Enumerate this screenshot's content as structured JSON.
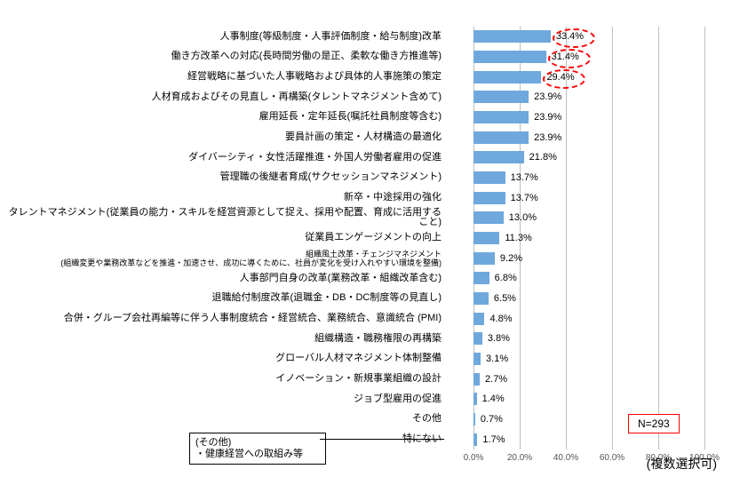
{
  "chart": {
    "type": "bar-horizontal",
    "x_max": 100,
    "x_ticks": [
      0,
      20,
      40,
      60,
      80,
      100
    ],
    "x_tick_labels": [
      "0.0%",
      "20.0%",
      "40.0%",
      "60.0%",
      "80.0%",
      "100.0%"
    ],
    "bar_color": "#6fa8dc",
    "grid_color": "#bfbfbf",
    "highlight_color": "#ff0000",
    "font_size_label": 11,
    "font_size_value": 11,
    "font_size_axis": 10,
    "n_box": "N=293",
    "multi_select_note": "(複数選択可)",
    "callout": {
      "line1": "(その他)",
      "line2": "・健康経営への取組み等"
    },
    "items": [
      {
        "label": "人事制度(等級制度・人事評価制度・給与制度)改革",
        "value": 33.4,
        "highlight": true
      },
      {
        "label": "働き方改革への対応(長時間労働の是正、柔軟な働き方推進等)",
        "value": 31.4,
        "highlight": true
      },
      {
        "label": "経営戦略に基づいた人事戦略および具体的人事施策の策定",
        "value": 29.4,
        "highlight": true
      },
      {
        "label": "人材育成およびその見直し・再構築(タレントマネジメント含めて)",
        "value": 23.9,
        "highlight": false
      },
      {
        "label": "雇用延長・定年延長(嘱託社員制度等含む)",
        "value": 23.9,
        "highlight": false
      },
      {
        "label": "要員計画の策定・人材構造の最適化",
        "value": 23.9,
        "highlight": false
      },
      {
        "label": "ダイバーシティ・女性活躍推進・外国人労働者雇用の促進",
        "value": 21.8,
        "highlight": false
      },
      {
        "label": "管理職の後継者育成(サクセッションマネジメント)",
        "value": 13.7,
        "highlight": false
      },
      {
        "label": "新卒・中途採用の強化",
        "value": 13.7,
        "highlight": false
      },
      {
        "label": "タレントマネジメント(従業員の能力・スキルを経営資源として捉え、採用や配置、育成に活用すること)",
        "value": 13.0,
        "highlight": false
      },
      {
        "label": "従業員エンゲージメントの向上",
        "value": 11.3,
        "highlight": false
      },
      {
        "label_line1": "組織風土改革・チェンジマネジメント",
        "label_line2": "(組織変更や業務改革などを推進・加速させ、成功に導くために、社員が変化を受け入れやすい環境を整備)",
        "two_line": true,
        "value": 9.2,
        "highlight": false
      },
      {
        "label": "人事部門自身の改革(業務改革・組織改革含む)",
        "value": 6.8,
        "highlight": false
      },
      {
        "label": "退職給付制度改革(退職金・DB・DC制度等の見直し)",
        "value": 6.5,
        "highlight": false
      },
      {
        "label": "合併・グループ会社再編等に伴う人事制度統合・経営統合、業務統合、意識統合 (PMI)",
        "value": 4.8,
        "highlight": false
      },
      {
        "label": "組織構造・職務権限の再構築",
        "value": 3.8,
        "highlight": false
      },
      {
        "label": "グローバル人材マネジメント体制整備",
        "value": 3.1,
        "highlight": false
      },
      {
        "label": "イノベーション・新規事業組織の設計",
        "value": 2.7,
        "highlight": false
      },
      {
        "label": "ジョブ型雇用の促進",
        "value": 1.4,
        "highlight": false
      },
      {
        "label": "その他",
        "value": 0.7,
        "highlight": false
      },
      {
        "label": "特にない",
        "value": 1.7,
        "highlight": false
      }
    ]
  }
}
